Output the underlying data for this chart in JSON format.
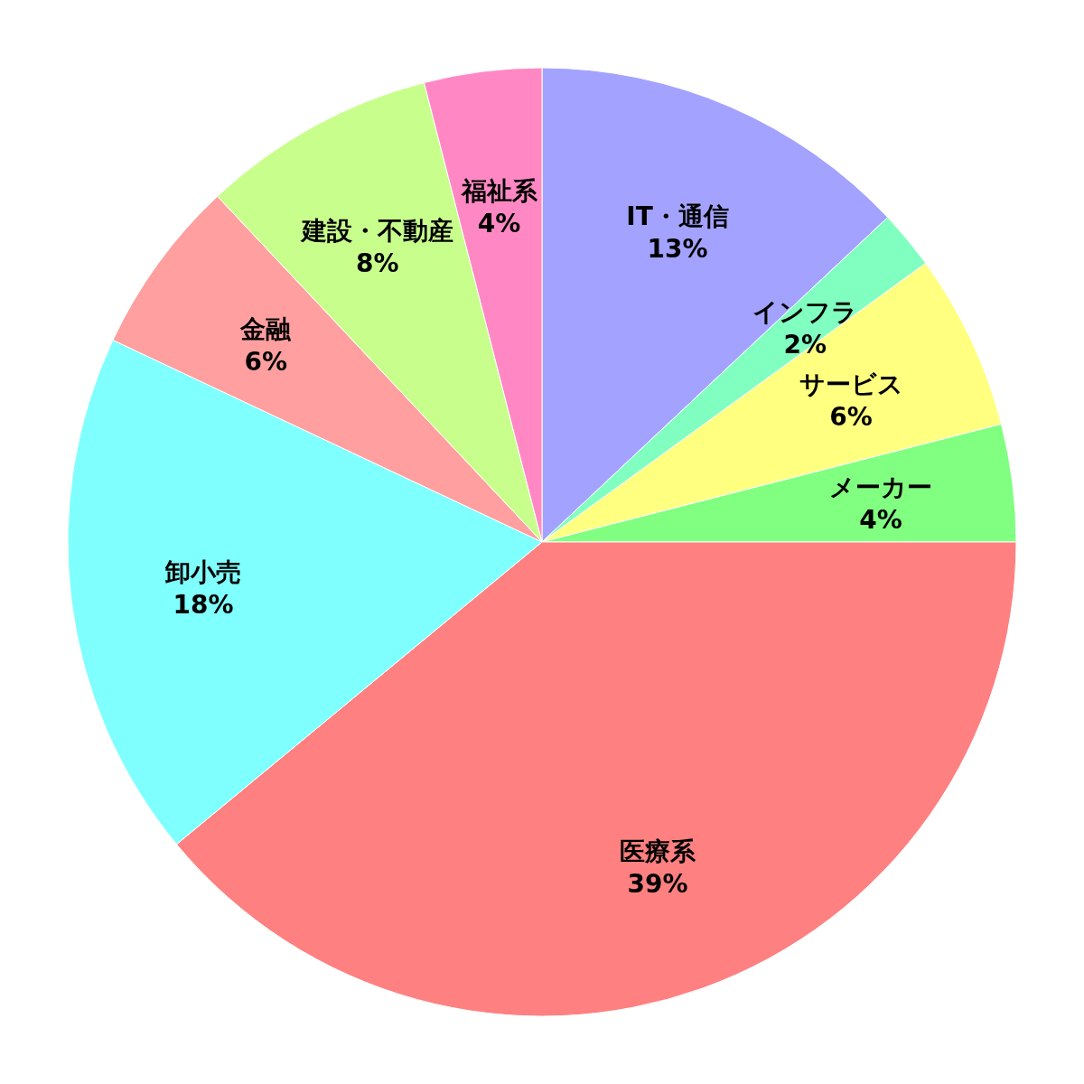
{
  "chart_data": {
    "type": "pie",
    "categories": [
      "IT・通信",
      "インフラ",
      "サービス",
      "メーカー",
      "医療系",
      "卸小売",
      "金融",
      "建設・不動産",
      "福祉系"
    ],
    "values": [
      13,
      2,
      6,
      4,
      39,
      18,
      6,
      8,
      4
    ],
    "value_labels": [
      "13%",
      "2%",
      "6%",
      "4%",
      "39%",
      "18%",
      "6%",
      "8%",
      "4%"
    ],
    "colors": [
      "#a3a3ff",
      "#80ffc0",
      "#ffff80",
      "#80ff80",
      "#ff8080",
      "#80ffff",
      "#ff9f9f",
      "#c8ff8c",
      "#ff88c4"
    ]
  }
}
